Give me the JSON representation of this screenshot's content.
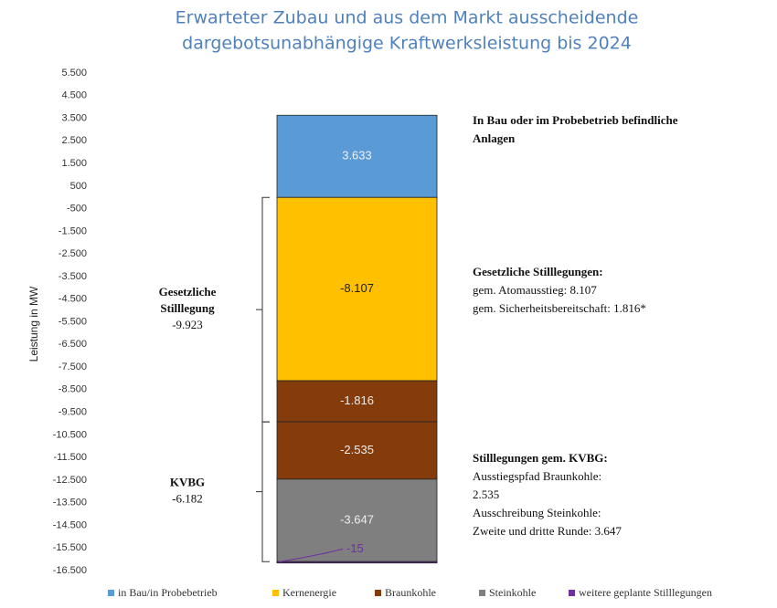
{
  "chart_data": {
    "type": "stacked-bar",
    "title": [
      "Erwarteter Zubau und aus dem Markt ausscheidende",
      "dargebotsunabhängige  Kraftwerksleistung bis 2024"
    ],
    "y_label": "Leistung in MW",
    "ylim": [
      -16500,
      5500
    ],
    "yticks": [
      {
        "value": 5500,
        "label": "5.500"
      },
      {
        "value": 4500,
        "label": "4.500"
      },
      {
        "value": 3500,
        "label": "3.500"
      },
      {
        "value": 2500,
        "label": "2.500"
      },
      {
        "value": 1500,
        "label": "1.500"
      },
      500,
      -500,
      {
        "value": -1500,
        "label": "-1.500"
      },
      {
        "value": -2500,
        "label": "-2.500"
      },
      {
        "value": -3500,
        "label": "-3.500"
      },
      {
        "value": -4500,
        "label": "-4.500"
      },
      {
        "value": -5500,
        "label": "-5.500"
      },
      {
        "value": -6500,
        "label": "-6.500"
      },
      {
        "value": -7500,
        "label": "-7.500"
      },
      {
        "value": -8500,
        "label": "-8.500"
      },
      {
        "value": -9500,
        "label": "-9.500"
      },
      {
        "value": -10500,
        "label": "-10.500"
      },
      {
        "value": -11500,
        "label": "-11.500"
      },
      {
        "value": -12500,
        "label": "-12.500"
      },
      {
        "value": -13500,
        "label": "-13.500"
      },
      {
        "value": -14500,
        "label": "-14.500"
      },
      {
        "value": -15500,
        "label": "-15.500"
      },
      {
        "value": -16500,
        "label": "-16.500"
      }
    ],
    "series": [
      {
        "name": "in Bau/in Probebetrieb",
        "color": "#5b9bd5",
        "values": [
          3633
        ],
        "value_labels": [
          "3.633"
        ]
      },
      {
        "name": "Kernenergie",
        "color": "#ffc000",
        "values": [
          -8107
        ],
        "value_labels": [
          "-8.107"
        ]
      },
      {
        "name": "Braunkohle",
        "color": "#843c0c",
        "values": [
          -1816,
          -2535
        ],
        "value_labels": [
          "-1.816",
          "-2.535"
        ]
      },
      {
        "name": "Steinkohle",
        "color": "#7f7f7f",
        "values": [
          -3647
        ],
        "value_labels": [
          "-3.647"
        ]
      },
      {
        "name": "weitere geplante Stilllegungen",
        "color": "#7030a0",
        "values": [
          -15
        ]
      }
    ],
    "brackets": [
      {
        "lines": [
          "Gesetzliche",
          "Stilllegung"
        ],
        "value": -9923,
        "label": "-9.923"
      },
      {
        "lines": [
          "KVBG"
        ],
        "value": -6182,
        "label": "-6.182"
      }
    ],
    "notes": [
      {
        "title": [
          "In Bau oder im Probebetrieb  befindliche",
          "Anlagen"
        ],
        "lines": []
      },
      {
        "title": [
          "Gesetzliche Stilllegungen:"
        ],
        "lines": [
          "gem. Atomausstieg: 8.107",
          "gem. Sicherheitsbereitschaft:  1.816*"
        ]
      },
      {
        "title": [
          "Stilllegungen gem. KVBG:"
        ],
        "lines": [
          "Ausstiegspfad Braunkohle:",
          "2.535",
          "Ausschreibung Steinkohle:",
          "Zweite und  dritte  Runde:  3.647"
        ]
      }
    ]
  }
}
